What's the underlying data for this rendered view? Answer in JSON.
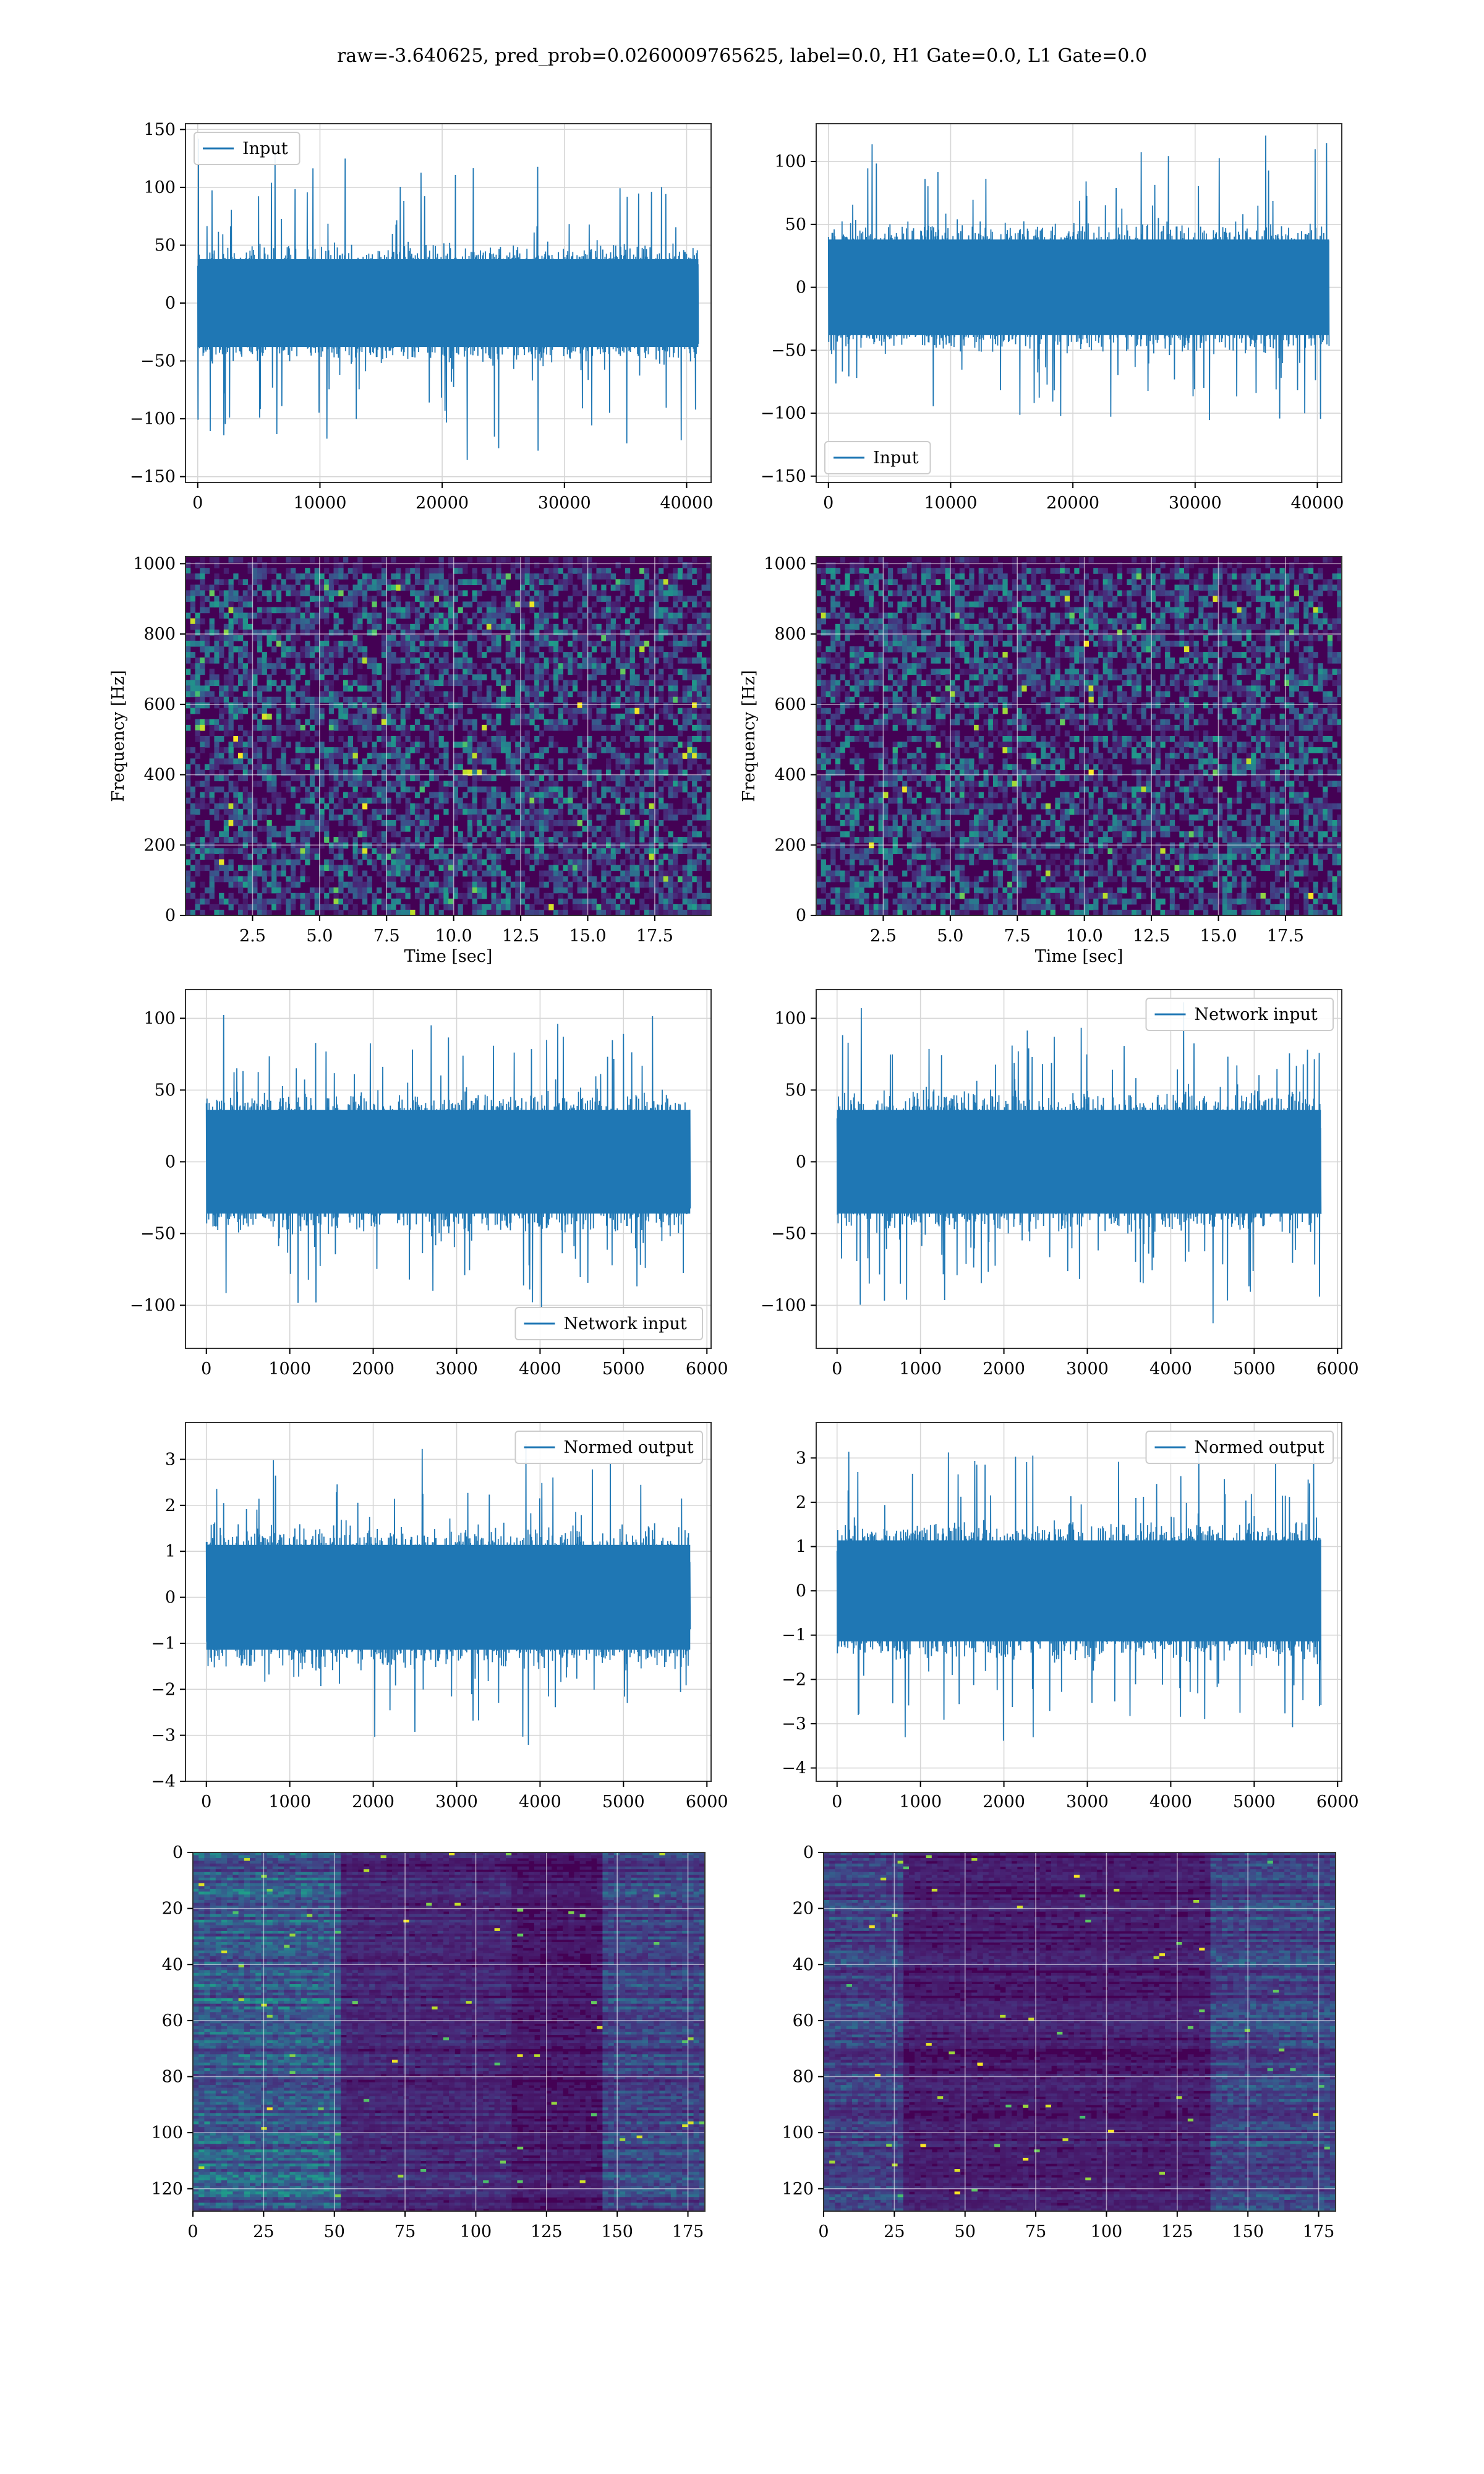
{
  "figure": {
    "title": "raw=-3.640625, pred_prob=0.0260009765625, label=0.0, H1 Gate=0.0, L1 Gate=0.0"
  },
  "colors": {
    "series": "#1f77b4",
    "grid": "#d6d6d6",
    "viridis_low": "#440154",
    "viridis_mid": "#21918c",
    "viridis_high": "#fde725"
  },
  "chart_data": [
    {
      "id": "ts_left_1",
      "type": "line",
      "xlim": [
        -1000,
        42000
      ],
      "ylim": [
        -155,
        155
      ],
      "xticks": [
        0,
        10000,
        20000,
        30000,
        40000
      ],
      "yticks": [
        -150,
        -100,
        -50,
        0,
        50,
        100,
        150
      ],
      "x_range": [
        0,
        40960
      ],
      "band": 40,
      "spike": 145,
      "legend": {
        "label": "Input",
        "loc": "upper-left"
      },
      "grid": true,
      "xlabel": "",
      "ylabel": ""
    },
    {
      "id": "ts_right_1",
      "type": "line",
      "xlim": [
        -1000,
        42000
      ],
      "ylim": [
        -155,
        130
      ],
      "xticks": [
        0,
        10000,
        20000,
        30000,
        40000
      ],
      "yticks": [
        -150,
        -100,
        -50,
        0,
        50,
        100
      ],
      "x_range": [
        0,
        40960
      ],
      "band": 40,
      "spike": 125,
      "legend": {
        "label": "Input",
        "loc": "lower-left"
      },
      "grid": true,
      "xlabel": "",
      "ylabel": ""
    },
    {
      "id": "spec_left",
      "type": "heatmap",
      "xlim": [
        0,
        19.6
      ],
      "ylim": [
        0,
        1020
      ],
      "xticks": [
        2.5,
        5.0,
        7.5,
        10.0,
        12.5,
        15.0,
        17.5
      ],
      "xtick_labels": [
        "2.5",
        "5.0",
        "7.5",
        "10.0",
        "12.5",
        "15.0",
        "17.5"
      ],
      "yticks": [
        0,
        200,
        400,
        600,
        800,
        1000
      ],
      "xlabel": "Time [sec]",
      "ylabel": "Frequency [Hz]",
      "colormap": "viridis",
      "grid": true
    },
    {
      "id": "spec_right",
      "type": "heatmap",
      "xlim": [
        0,
        19.6
      ],
      "ylim": [
        0,
        1020
      ],
      "xticks": [
        2.5,
        5.0,
        7.5,
        10.0,
        12.5,
        15.0,
        17.5
      ],
      "xtick_labels": [
        "2.5",
        "5.0",
        "7.5",
        "10.0",
        "12.5",
        "15.0",
        "17.5"
      ],
      "yticks": [
        0,
        200,
        400,
        600,
        800,
        1000
      ],
      "xlabel": "Time [sec]",
      "ylabel": "Frequency [Hz]",
      "colormap": "viridis",
      "grid": true
    },
    {
      "id": "ts_left_2",
      "type": "line",
      "xlim": [
        -250,
        6050
      ],
      "ylim": [
        -130,
        120
      ],
      "xticks": [
        0,
        1000,
        2000,
        3000,
        4000,
        5000,
        6000
      ],
      "yticks": [
        -100,
        -50,
        0,
        50,
        100
      ],
      "x_range": [
        0,
        5800
      ],
      "band": 38,
      "spike": 110,
      "legend": {
        "label": "Network input",
        "loc": "lower-right"
      },
      "grid": true,
      "xlabel": "",
      "ylabel": ""
    },
    {
      "id": "ts_right_2",
      "type": "line",
      "xlim": [
        -250,
        6050
      ],
      "ylim": [
        -130,
        120
      ],
      "xticks": [
        0,
        1000,
        2000,
        3000,
        4000,
        5000,
        6000
      ],
      "yticks": [
        -100,
        -50,
        0,
        50,
        100
      ],
      "x_range": [
        0,
        5800
      ],
      "band": 38,
      "spike": 115,
      "legend": {
        "label": "Network input",
        "loc": "upper-right"
      },
      "grid": true,
      "xlabel": "",
      "ylabel": ""
    },
    {
      "id": "ts_left_3",
      "type": "line",
      "xlim": [
        -250,
        6050
      ],
      "ylim": [
        -4,
        3.8
      ],
      "xticks": [
        0,
        1000,
        2000,
        3000,
        4000,
        5000,
        6000
      ],
      "yticks": [
        -4,
        -3,
        -2,
        -1,
        0,
        1,
        2,
        3
      ],
      "x_range": [
        0,
        5800
      ],
      "band": 1.2,
      "spike": 3.4,
      "legend": {
        "label": "Normed output",
        "loc": "upper-right"
      },
      "grid": true,
      "xlabel": "",
      "ylabel": ""
    },
    {
      "id": "ts_right_3",
      "type": "line",
      "xlim": [
        -250,
        6050
      ],
      "ylim": [
        -4.3,
        3.8
      ],
      "xticks": [
        0,
        1000,
        2000,
        3000,
        4000,
        5000,
        6000
      ],
      "yticks": [
        -4,
        -3,
        -2,
        -1,
        0,
        1,
        2,
        3
      ],
      "x_range": [
        0,
        5800
      ],
      "band": 1.2,
      "spike": 3.6,
      "legend": {
        "label": "Normed output",
        "loc": "upper-right"
      },
      "grid": true,
      "xlabel": "",
      "ylabel": ""
    },
    {
      "id": "feat_left",
      "type": "heatmap",
      "xlim": [
        0,
        181
      ],
      "ylim": [
        128,
        0
      ],
      "xticks": [
        0,
        25,
        50,
        75,
        100,
        125,
        150,
        175
      ],
      "yticks": [
        0,
        20,
        40,
        60,
        80,
        100,
        120
      ],
      "xlabel": "",
      "ylabel": "",
      "colormap": "viridis",
      "grid": true
    },
    {
      "id": "feat_right",
      "type": "heatmap",
      "xlim": [
        0,
        181
      ],
      "ylim": [
        128,
        0
      ],
      "xticks": [
        0,
        25,
        50,
        75,
        100,
        125,
        150,
        175
      ],
      "yticks": [
        0,
        20,
        40,
        60,
        80,
        100,
        120
      ],
      "xlabel": "",
      "ylabel": "",
      "colormap": "viridis",
      "grid": true
    }
  ]
}
